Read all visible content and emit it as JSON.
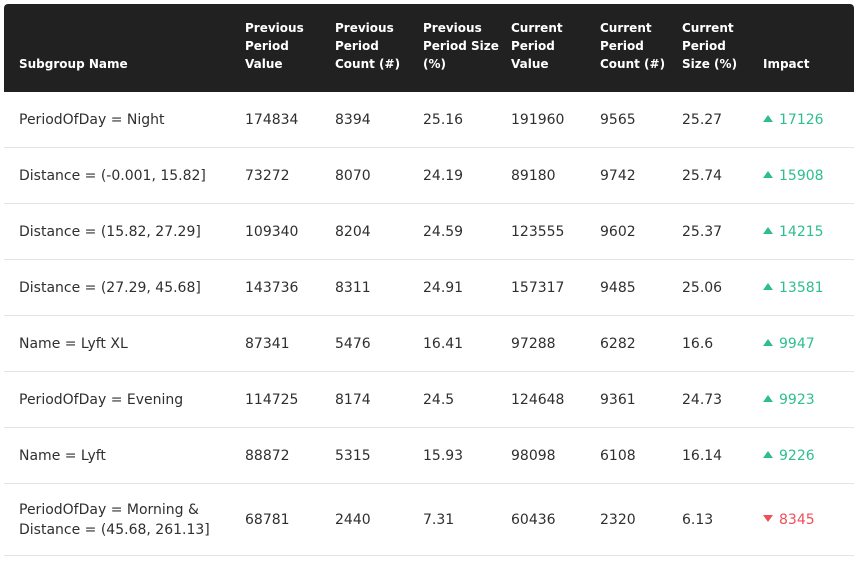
{
  "colors": {
    "header_bg": "#212121",
    "up": "#2dbf8e",
    "down": "#ef4f5b"
  },
  "table": {
    "columns": [
      "Subgroup Name",
      "Previous Period Value",
      "Previous Period Count (#)",
      "Previous Period Size (%)",
      "Current Period Value",
      "Current Period Count (#)",
      "Current Period Size (%)",
      "Impact"
    ],
    "rows": [
      {
        "name": "PeriodOfDay = Night",
        "prev_value": "174834",
        "prev_count": "8394",
        "prev_size": "25.16",
        "curr_value": "191960",
        "curr_count": "9565",
        "curr_size": "25.27",
        "impact": "17126",
        "direction": "up",
        "direction_icon": "triangle-up-icon"
      },
      {
        "name": "Distance = (-0.001, 15.82]",
        "prev_value": "73272",
        "prev_count": "8070",
        "prev_size": "24.19",
        "curr_value": "89180",
        "curr_count": "9742",
        "curr_size": "25.74",
        "impact": "15908",
        "direction": "up",
        "direction_icon": "triangle-up-icon"
      },
      {
        "name": "Distance = (15.82, 27.29]",
        "prev_value": "109340",
        "prev_count": "8204",
        "prev_size": "24.59",
        "curr_value": "123555",
        "curr_count": "9602",
        "curr_size": "25.37",
        "impact": "14215",
        "direction": "up",
        "direction_icon": "triangle-up-icon"
      },
      {
        "name": "Distance = (27.29, 45.68]",
        "prev_value": "143736",
        "prev_count": "8311",
        "prev_size": "24.91",
        "curr_value": "157317",
        "curr_count": "9485",
        "curr_size": "25.06",
        "impact": "13581",
        "direction": "up",
        "direction_icon": "triangle-up-icon"
      },
      {
        "name": "Name = Lyft XL",
        "prev_value": "87341",
        "prev_count": "5476",
        "prev_size": "16.41",
        "curr_value": "97288",
        "curr_count": "6282",
        "curr_size": "16.6",
        "impact": "9947",
        "direction": "up",
        "direction_icon": "triangle-up-icon"
      },
      {
        "name": "PeriodOfDay = Evening",
        "prev_value": "114725",
        "prev_count": "8174",
        "prev_size": "24.5",
        "curr_value": "124648",
        "curr_count": "9361",
        "curr_size": "24.73",
        "impact": "9923",
        "direction": "up",
        "direction_icon": "triangle-up-icon"
      },
      {
        "name": "Name = Lyft",
        "prev_value": "88872",
        "prev_count": "5315",
        "prev_size": "15.93",
        "curr_value": "98098",
        "curr_count": "6108",
        "curr_size": "16.14",
        "impact": "9226",
        "direction": "up",
        "direction_icon": "triangle-up-icon"
      },
      {
        "name": "PeriodOfDay = Morning & Distance = (45.68, 261.13]",
        "prev_value": "68781",
        "prev_count": "2440",
        "prev_size": "7.31",
        "curr_value": "60436",
        "curr_count": "2320",
        "curr_size": "6.13",
        "impact": "8345",
        "direction": "down",
        "direction_icon": "triangle-down-icon"
      }
    ]
  }
}
